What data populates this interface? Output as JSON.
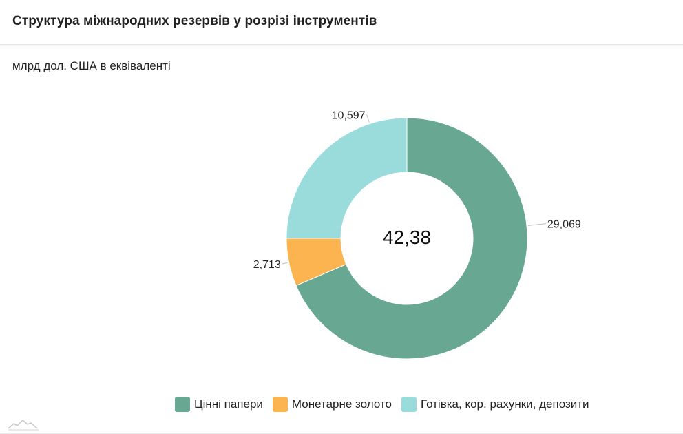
{
  "header": {
    "title": "Структура міжнародних резервів у розрізі інструментів"
  },
  "subtitle": "млрд дол. США в еквіваленті",
  "colors": {
    "securities": "#68a893",
    "gold": "#fbb44f",
    "cash": "#9adcdc"
  },
  "chart_data": {
    "type": "pie",
    "subtype": "donut",
    "title": "Структура міжнародних резервів у розрізі інструментів",
    "unit": "млрд дол. США в еквіваленті",
    "total": 42.38,
    "total_label": "42,38",
    "series": [
      {
        "name": "Цінні папери",
        "value": 29.069,
        "label": "29,069",
        "color": "#68a893"
      },
      {
        "name": "Монетарне золото",
        "value": 2.713,
        "label": "2,713",
        "color": "#fbb44f"
      },
      {
        "name": "Готівка, кор. рахунки, депозити",
        "value": 10.597,
        "label": "10,597",
        "color": "#9adcdc"
      }
    ],
    "legend_position": "bottom-right"
  },
  "logo": {
    "icon": "mountain-logo-icon"
  }
}
